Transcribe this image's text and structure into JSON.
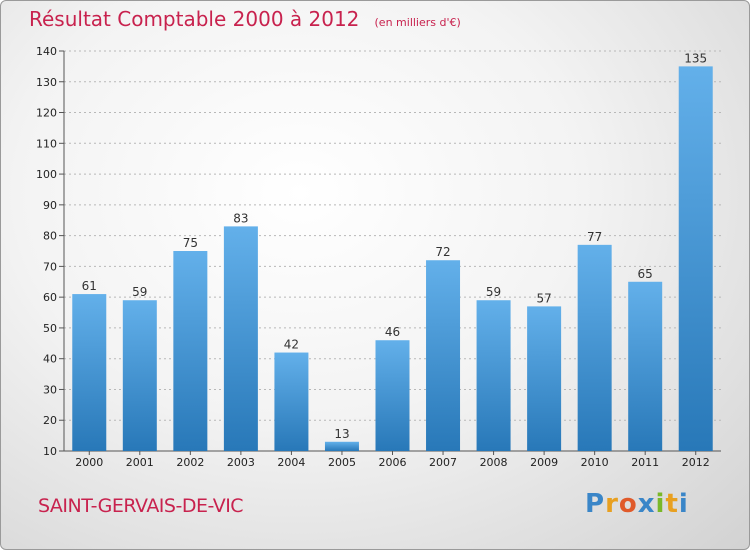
{
  "title": "Résultat Comptable 2000 à 2012",
  "subtitle": "(en milliers d'€)",
  "commune": "SAINT-GERVAIS-DE-VIC",
  "logo": {
    "text": "Proxiti",
    "letters": [
      {
        "char": "P",
        "color": "#3a86c8"
      },
      {
        "char": "r",
        "color": "#e8a020"
      },
      {
        "char": "o",
        "color": "#e05a2a"
      },
      {
        "char": "x",
        "color": "#3a86c8"
      },
      {
        "char": "i",
        "color": "#7ab828"
      },
      {
        "char": "t",
        "color": "#e8a020"
      },
      {
        "char": "i",
        "color": "#3a86c8"
      }
    ]
  },
  "colors": {
    "bar_light": "#63b0ea",
    "bar_dark": "#2878b8",
    "title": "#c8224e"
  },
  "chart_data": {
    "type": "bar",
    "categories": [
      "2000",
      "2001",
      "2002",
      "2003",
      "2004",
      "2005",
      "2006",
      "2007",
      "2008",
      "2009",
      "2010",
      "2011",
      "2012"
    ],
    "values": [
      61,
      59,
      75,
      83,
      42,
      13,
      46,
      72,
      59,
      57,
      77,
      65,
      135
    ],
    "ylim": [
      10,
      140
    ],
    "yticks": [
      10,
      20,
      30,
      40,
      50,
      60,
      70,
      80,
      90,
      100,
      110,
      120,
      130,
      140
    ],
    "grid": "y-dashed",
    "legend": "none"
  }
}
